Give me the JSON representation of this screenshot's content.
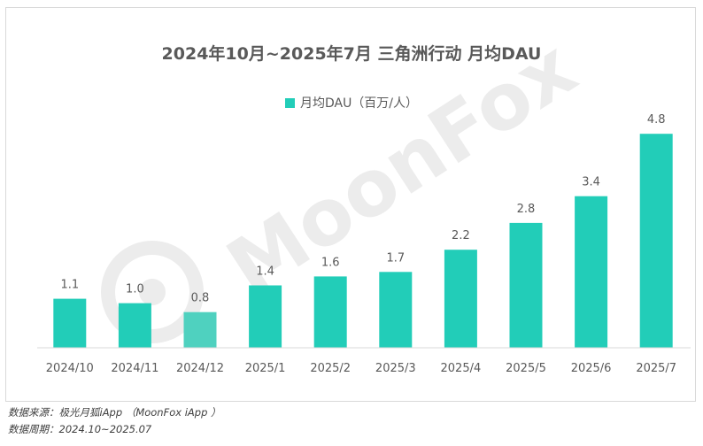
{
  "chart_data": {
    "type": "bar",
    "title": "2024年10月~2025年7月 三角洲行动 月均DAU",
    "series": [
      {
        "name": "月均DAU（百万/人）",
        "values": [
          1.1,
          1.0,
          0.8,
          1.4,
          1.6,
          1.7,
          2.2,
          2.8,
          3.4,
          4.8
        ]
      }
    ],
    "categories": [
      "2024/10",
      "2024/11",
      "2024/12",
      "2025/1",
      "2025/2",
      "2025/3",
      "2025/4",
      "2025/5",
      "2025/6",
      "2025/7"
    ],
    "data_labels": [
      "1.1",
      "1.0",
      "0.8",
      "1.4",
      "1.6",
      "1.7",
      "2.2",
      "2.8",
      "3.4",
      "4.8"
    ],
    "xlabel": "",
    "ylabel": "",
    "ylim": [
      0,
      5.2
    ],
    "grid": false,
    "legend_position": "top-center",
    "colors": {
      "bar": "#22cdb8",
      "highlight_bar": "#4fd1bf",
      "label": "#595959",
      "axis": "#d9d9d9"
    }
  },
  "watermark": "MoonFox",
  "footer": {
    "source": "数据来源：极光月狐iApp （MoonFox iApp ）",
    "period": "数据周期：2024.10~2025.07"
  }
}
